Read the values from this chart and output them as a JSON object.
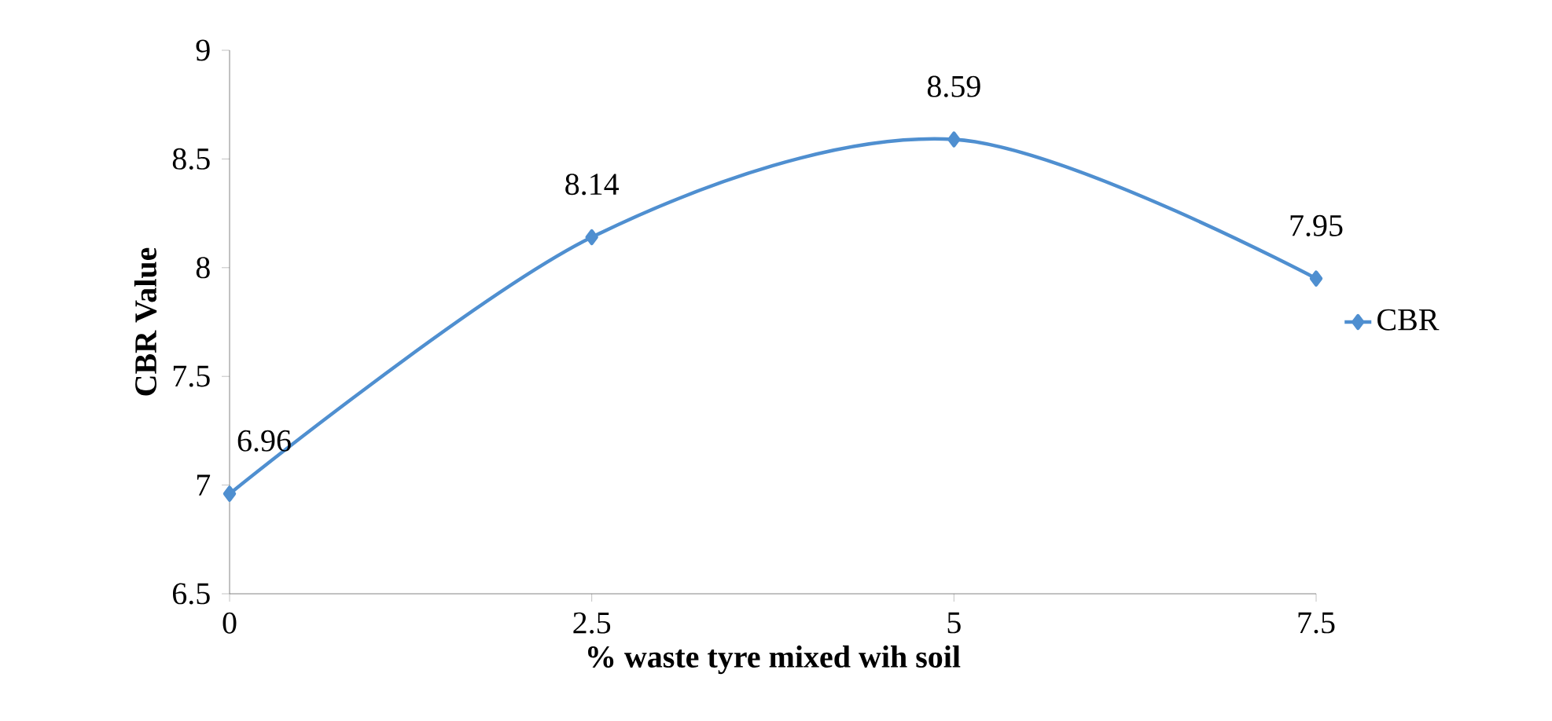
{
  "chart_data": {
    "type": "line",
    "xlabel": "% waste tyre mixed wih soil",
    "ylabel": "CBR Value",
    "x": [
      0,
      2.5,
      5,
      7.5
    ],
    "series": [
      {
        "name": "CBR",
        "color": "#4f8fd0",
        "values": [
          6.96,
          8.14,
          8.59,
          7.95
        ]
      }
    ],
    "xlim": [
      0,
      7.5
    ],
    "xticks": [
      0,
      2.5,
      5,
      7.5
    ],
    "ylim": [
      6.5,
      9
    ],
    "yticks": [
      6.5,
      7,
      7.5,
      8,
      8.5,
      9
    ],
    "grid": false,
    "legend": "right",
    "marker": "diamond",
    "line_style": "solid",
    "data_labels": true
  }
}
